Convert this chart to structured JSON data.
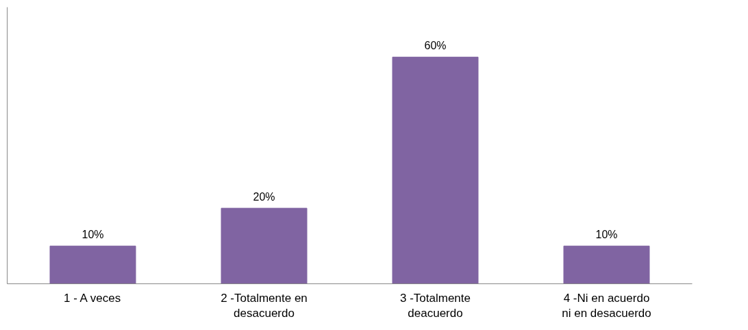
{
  "chart_data": {
    "type": "bar",
    "categories": [
      "1 - A veces",
      "2 -Totalmente en desacuerdo",
      "3 -Totalmente deacuerdo",
      "4 -Ni en acuerdo ni en desacuerdo"
    ],
    "values": [
      10,
      20,
      60,
      10
    ],
    "value_labels": [
      "10%",
      "20%",
      "60%",
      "10%"
    ],
    "color": "#8064a2",
    "grid": false
  }
}
